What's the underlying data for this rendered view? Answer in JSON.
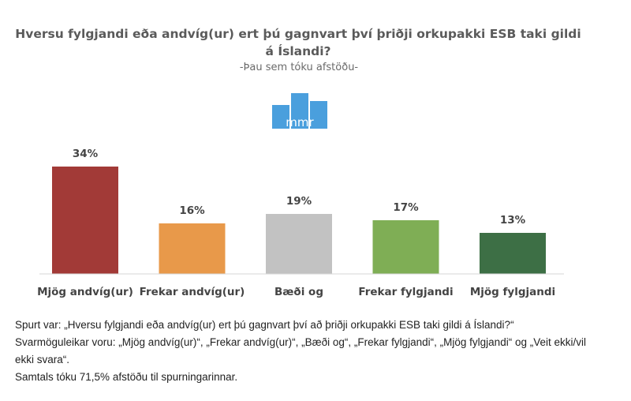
{
  "chart_data": {
    "type": "bar",
    "title_lines": [
      "Hversu fylgjandi eða andvíg(ur) ert þú gagnvart því þriðji orkupakki ESB taki gildi",
      "á Íslandi?"
    ],
    "subtitle": "-Þau sem tóku afstöðu-",
    "categories": [
      "Mjög andvíg(ur)",
      "Frekar andvíg(ur)",
      "Bæði og",
      "Frekar fylgjandi",
      "Mjög fylgjandi"
    ],
    "values": [
      34,
      16,
      19,
      17,
      13
    ],
    "value_labels": [
      "34%",
      "16%",
      "19%",
      "17%",
      "13%"
    ],
    "colors": [
      "#a23a37",
      "#e8994a",
      "#c2c2c2",
      "#7fae55",
      "#3d6f45"
    ],
    "ylim": [
      0,
      34
    ],
    "xlabel": "",
    "ylabel": "",
    "grid": false
  },
  "logo": {
    "text": "mmr",
    "color": "#4a9fdd"
  },
  "notes": {
    "line1": "Spurt var: „Hversu fylgjandi eða andvíg(ur) ert þú gagnvart því að þriðji orkupakki ESB taki gildi á Íslandi?“",
    "line2": "Svarmöguleikar voru: „Mjög andvíg(ur)“, „Frekar andvíg(ur)“, „Bæði og“, „Frekar fylgjandi“, „Mjög fylgjandi“ og „Veit ekki/vil ekki svara“.",
    "line3": "Samtals tóku 71,5% afstöðu til spurningarinnar."
  }
}
